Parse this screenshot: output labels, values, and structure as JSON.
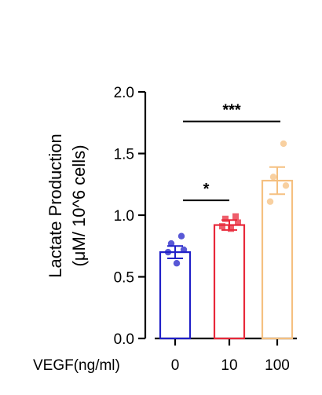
{
  "chart_data": {
    "type": "bar",
    "ylabel_line1": "Lactate Production",
    "ylabel_line2": "(μM/ 10^6 cells)",
    "xlabel": "VEGF(ng/ml)",
    "categories": [
      "0",
      "10",
      "100"
    ],
    "values": [
      0.7,
      0.92,
      1.28
    ],
    "errors": [
      0.05,
      0.04,
      0.11
    ],
    "colors": [
      "#2020c8",
      "#e8283a",
      "#f5c080"
    ],
    "points": [
      [
        0.83,
        0.77,
        0.72,
        0.7,
        0.61
      ],
      [
        0.99,
        0.97,
        0.94,
        0.91,
        0.89
      ],
      [
        1.58,
        1.31,
        1.24,
        1.11
      ]
    ],
    "ylim": [
      0.0,
      2.0
    ],
    "yticks": [
      "0.0",
      "0.5",
      "1.0",
      "1.5",
      "2.0"
    ],
    "significance": [
      {
        "from": 0,
        "to": 1,
        "label": "*",
        "y": 1.12
      },
      {
        "from": 0,
        "to": 2,
        "label": "***",
        "y": 1.76
      }
    ]
  }
}
